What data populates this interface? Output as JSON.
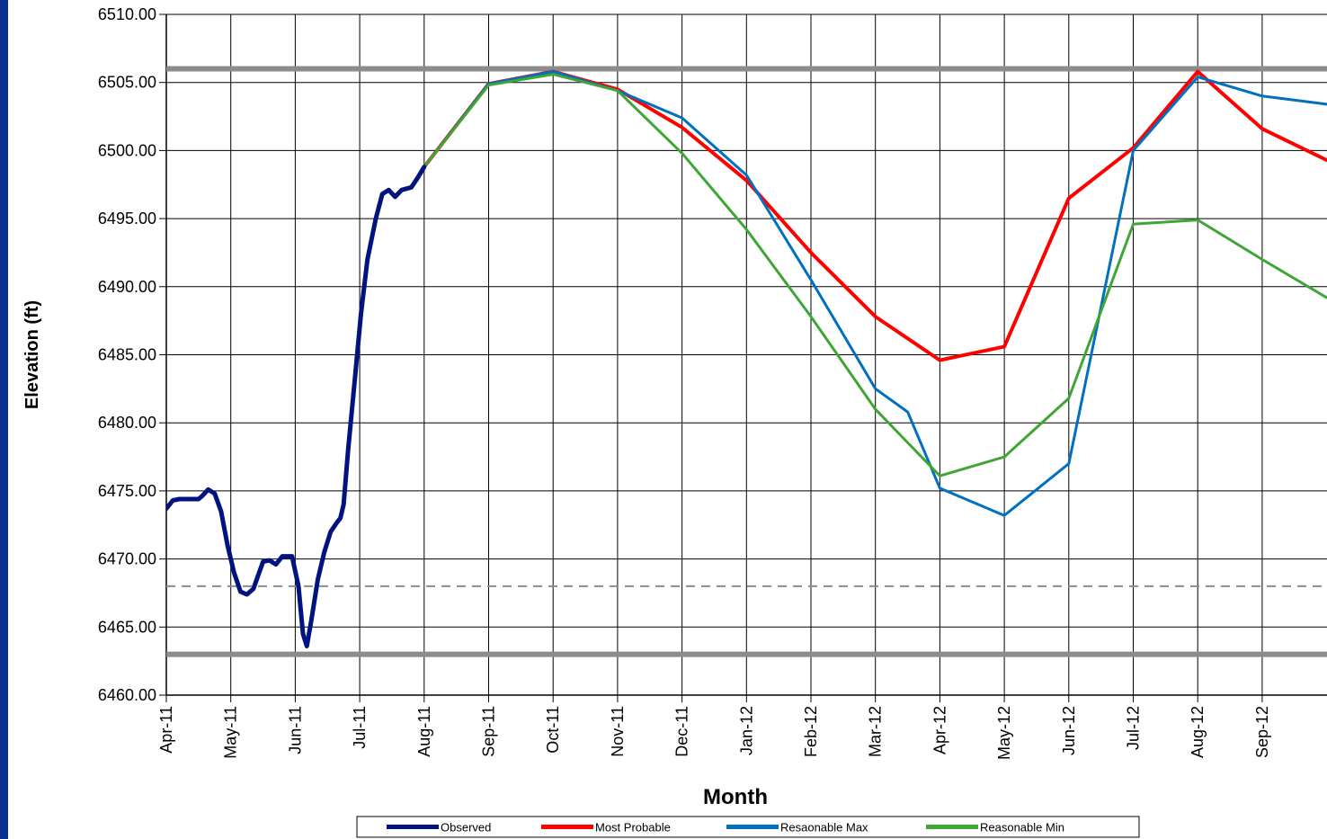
{
  "theme": {
    "left_band_color": "#0a2f8c",
    "grid_color": "#000000",
    "reference_color": "#8c8c8c"
  },
  "chart_data": {
    "type": "line",
    "xlabel": "Month",
    "ylabel": "Elevation (ft)",
    "ylim": [
      6460,
      6510
    ],
    "ytick_step": 5,
    "ytick_labels": [
      "6460.00",
      "6465.00",
      "6470.00",
      "6475.00",
      "6480.00",
      "6485.00",
      "6490.00",
      "6495.00",
      "6500.00",
      "6505.00",
      "6510.00"
    ],
    "x_domain": [
      0,
      18.0
    ],
    "x_ticks": [
      0,
      1,
      2,
      3,
      4,
      5,
      6,
      7,
      8,
      9,
      10,
      11,
      12,
      13,
      14,
      15,
      16,
      17
    ],
    "x_tick_labels": [
      "Apr-11",
      "May-11",
      "Jun-11",
      "Jul-11",
      "Aug-11",
      "Sep-11",
      "Oct-11",
      "Nov-11",
      "Dec-11",
      "Jan-12",
      "Feb-12",
      "Mar-12",
      "Apr-12",
      "May-12",
      "Jun-12",
      "Jul-12",
      "Aug-12",
      "Sep-12"
    ],
    "grid": true,
    "legend_position": "bottom",
    "reference_lines": [
      {
        "y": 6506,
        "style": "solid"
      },
      {
        "y": 6463,
        "style": "solid"
      },
      {
        "y": 6468,
        "style": "dashed"
      }
    ],
    "series": [
      {
        "name": "Observed",
        "color": "#00137f",
        "width": 5,
        "points": [
          [
            0,
            6473.7
          ],
          [
            0.1,
            6474.3
          ],
          [
            0.2,
            6474.4
          ],
          [
            0.5,
            6474.4
          ],
          [
            0.55,
            6474.6
          ],
          [
            0.65,
            6475.1
          ],
          [
            0.75,
            6474.8
          ],
          [
            0.85,
            6473.5
          ],
          [
            0.95,
            6471
          ],
          [
            1.05,
            6469
          ],
          [
            1.15,
            6467.6
          ],
          [
            1.25,
            6467.4
          ],
          [
            1.35,
            6467.8
          ],
          [
            1.5,
            6469.8
          ],
          [
            1.6,
            6469.9
          ],
          [
            1.7,
            6469.6
          ],
          [
            1.8,
            6470.2
          ],
          [
            1.95,
            6470.2
          ],
          [
            2.05,
            6468
          ],
          [
            2.12,
            6464.5
          ],
          [
            2.18,
            6463.6
          ],
          [
            2.25,
            6465.5
          ],
          [
            2.35,
            6468.5
          ],
          [
            2.45,
            6470.5
          ],
          [
            2.55,
            6472
          ],
          [
            2.65,
            6472.7
          ],
          [
            2.7,
            6473
          ],
          [
            2.75,
            6474
          ],
          [
            2.82,
            6478
          ],
          [
            2.92,
            6483
          ],
          [
            3.02,
            6488
          ],
          [
            3.12,
            6492
          ],
          [
            3.25,
            6495
          ],
          [
            3.35,
            6496.8
          ],
          [
            3.45,
            6497.1
          ],
          [
            3.55,
            6496.6
          ],
          [
            3.65,
            6497.1
          ],
          [
            3.8,
            6497.3
          ],
          [
            3.9,
            6498
          ],
          [
            4.0,
            6498.8
          ]
        ]
      },
      {
        "name": "Most Probable",
        "color": "#ff0000",
        "width": 4,
        "points": [
          [
            4,
            6498.8
          ],
          [
            5,
            6504.9
          ],
          [
            6,
            6505.8
          ],
          [
            7,
            6504.5
          ],
          [
            8,
            6501.7
          ],
          [
            9,
            6497.8
          ],
          [
            10,
            6492.5
          ],
          [
            11,
            6487.8
          ],
          [
            12,
            6484.6
          ],
          [
            13,
            6485.6
          ],
          [
            14,
            6496.5
          ],
          [
            15,
            6500.2
          ],
          [
            16,
            6505.8
          ],
          [
            17,
            6501.6
          ],
          [
            18,
            6499.3
          ]
        ]
      },
      {
        "name": "Resaonable Max",
        "color": "#0070c0",
        "width": 3,
        "points": [
          [
            4,
            6498.8
          ],
          [
            5,
            6504.9
          ],
          [
            6,
            6505.8
          ],
          [
            7,
            6504.4
          ],
          [
            8,
            6502.4
          ],
          [
            9,
            6498.2
          ],
          [
            10,
            6490.5
          ],
          [
            11,
            6482.5
          ],
          [
            11.5,
            6480.8
          ],
          [
            12,
            6475.2
          ],
          [
            13,
            6473.2
          ],
          [
            14,
            6477
          ],
          [
            15,
            6500
          ],
          [
            16,
            6505.4
          ],
          [
            17,
            6504.0
          ],
          [
            18,
            6503.4
          ]
        ]
      },
      {
        "name": "Reasonable Min",
        "color": "#3fa535",
        "width": 3,
        "points": [
          [
            4,
            6498.8
          ],
          [
            5,
            6504.8
          ],
          [
            6,
            6505.6
          ],
          [
            7,
            6504.4
          ],
          [
            8,
            6499.8
          ],
          [
            9,
            6494.2
          ],
          [
            10,
            6487.8
          ],
          [
            11,
            6481
          ],
          [
            12,
            6476.1
          ],
          [
            13,
            6477.5
          ],
          [
            14,
            6481.8
          ],
          [
            15,
            6494.6
          ],
          [
            16,
            6494.9
          ],
          [
            17,
            6492
          ],
          [
            18,
            6489.2
          ]
        ]
      }
    ]
  }
}
